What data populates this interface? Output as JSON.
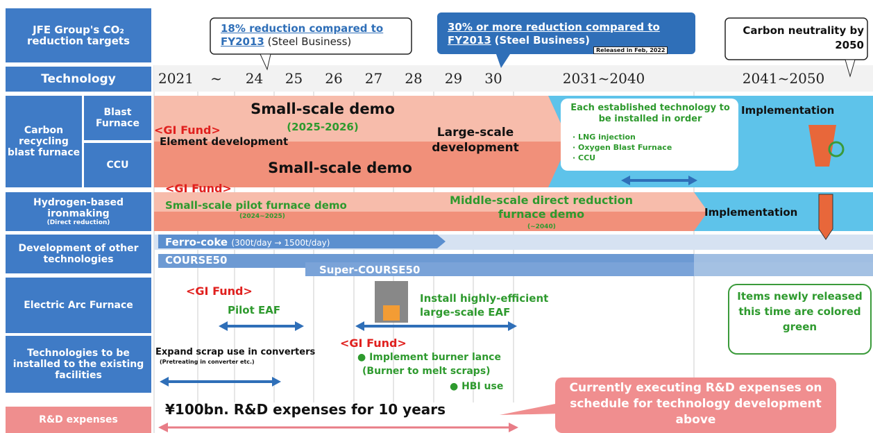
{
  "header": {
    "targets_label": "JFE Group's CO₂ reduction targets",
    "technology_label": "Technology"
  },
  "callouts": [
    {
      "underlined": "18% reduction compared to FY2013",
      "note": "(Steel Business)"
    },
    {
      "underlined": "30% or more reduction compared to FY2013",
      "note": "(Steel Business)",
      "released": "Released in Feb, 2022"
    },
    {
      "text": "Carbon neutrality by 2050"
    }
  ],
  "timeline": [
    "2021",
    "~",
    "24",
    "25",
    "26",
    "27",
    "28",
    "29",
    "30",
    "2031~2040",
    "2041~2050"
  ],
  "rows": {
    "carbon_recycling": {
      "label": "Carbon recycling blast furnace",
      "sub1": "Blast Furnace",
      "sub2": "CCU",
      "demo1": "Small-scale demo",
      "demo1_years": "(2025-2026)",
      "gi_fund": "<GI Fund>",
      "element": "Element development",
      "large": "Large-scale development",
      "demo2": "Small-scale demo",
      "established": "Each established technology to be installed in order",
      "items": [
        "· LNG injection",
        "· Oxygen Blast Furnace",
        "· CCU"
      ],
      "implementation": "Implementation"
    },
    "hydrogen": {
      "label": "Hydrogen-based ironmaking",
      "sub": "(Direct reduction)",
      "gi_fund": "<GI Fund>",
      "pilot": "Small-scale pilot furnace demo",
      "pilot_years": "(2024~2025)",
      "middle": "Middle-scale direct reduction furnace demo",
      "middle_years": "(~2040)",
      "implementation": "Implementation"
    },
    "other": {
      "label": "Development of other technologies",
      "ferro": "Ferro-coke",
      "ferro_note": "(300t/day → 1500t/day)",
      "course50": "COURSE50",
      "super": "Super-COURSE50"
    },
    "eaf": {
      "label": "Electric Arc Furnace",
      "gi_fund": "<GI Fund>",
      "pilot": "Pilot EAF",
      "install": "Install highly-efficient large-scale EAF",
      "note": "Items newly released this time are colored green"
    },
    "existing": {
      "label": "Technologies to be installed to the existing facilities",
      "scrap": "Expand scrap use in converters",
      "scrap_note": "(Pretreating in converter etc.)",
      "gi_fund": "<GI Fund>",
      "burner": "● Implement burner lance",
      "burner_note": "(Burner to melt scraps)",
      "hbi": "● HBI use"
    },
    "rd": {
      "label": "R&D expenses",
      "amount": "¥100bn. R&D expenses for 10 years",
      "callout": "Currently executing R&D expenses on schedule for technology development above"
    }
  }
}
